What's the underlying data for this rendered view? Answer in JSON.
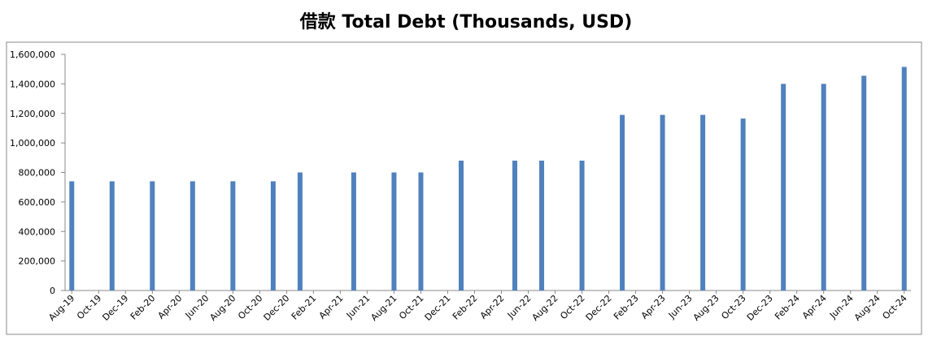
{
  "chart_data": {
    "type": "bar",
    "title": "借款 Total Debt (Thousands, USD)",
    "categories": [
      "Aug-19",
      null,
      "Oct-19",
      null,
      "Dec-19",
      null,
      "Feb-20",
      null,
      "Apr-20",
      null,
      "Jun-20",
      null,
      "Aug-20",
      null,
      "Oct-20",
      null,
      "Dec-20",
      null,
      "Feb-21",
      null,
      "Apr-21",
      null,
      "Jun-21",
      null,
      "Aug-21",
      null,
      "Oct-21",
      null,
      "Dec-21",
      null,
      "Feb-22",
      null,
      "Apr-22",
      null,
      "Jun-22",
      null,
      "Aug-22",
      null,
      "Oct-22",
      null,
      "Dec-22",
      null,
      "Feb-23",
      null,
      "Apr-23",
      null,
      "Jun-23",
      null,
      "Aug-23",
      null,
      "Oct-23",
      null,
      "Dec-23",
      null,
      "Feb-24",
      null,
      "Apr-24",
      null,
      "Jun-24",
      null,
      "Aug-24",
      null,
      "Oct-24"
    ],
    "values": [
      740000,
      null,
      null,
      740000,
      null,
      null,
      740000,
      null,
      null,
      740000,
      null,
      null,
      740000,
      null,
      null,
      740000,
      null,
      800000,
      null,
      null,
      null,
      800000,
      null,
      null,
      800000,
      null,
      800000,
      null,
      null,
      880000,
      null,
      null,
      null,
      880000,
      null,
      880000,
      null,
      null,
      880000,
      null,
      null,
      1190000,
      null,
      null,
      1190000,
      null,
      null,
      1190000,
      null,
      null,
      1165000,
      null,
      null,
      1400000,
      null,
      null,
      1400000,
      null,
      null,
      1455000,
      null,
      null,
      1515000
    ],
    "color": "#4f81bd",
    "ylim": [
      0,
      1600000
    ],
    "yticks": [
      0,
      {
        "value": 200000,
        "label": "200,000"
      },
      {
        "value": 400000,
        "label": "400,000"
      },
      {
        "value": 600000,
        "label": "600,000"
      },
      {
        "value": 800000,
        "label": "800,000"
      },
      {
        "value": 1000000,
        "label": "1,000,000"
      },
      {
        "value": 1200000,
        "label": "1,200,000"
      },
      {
        "value": 1400000,
        "label": "1,400,000"
      },
      {
        "value": 1600000,
        "label": "1,600,000"
      }
    ],
    "grid": false
  }
}
